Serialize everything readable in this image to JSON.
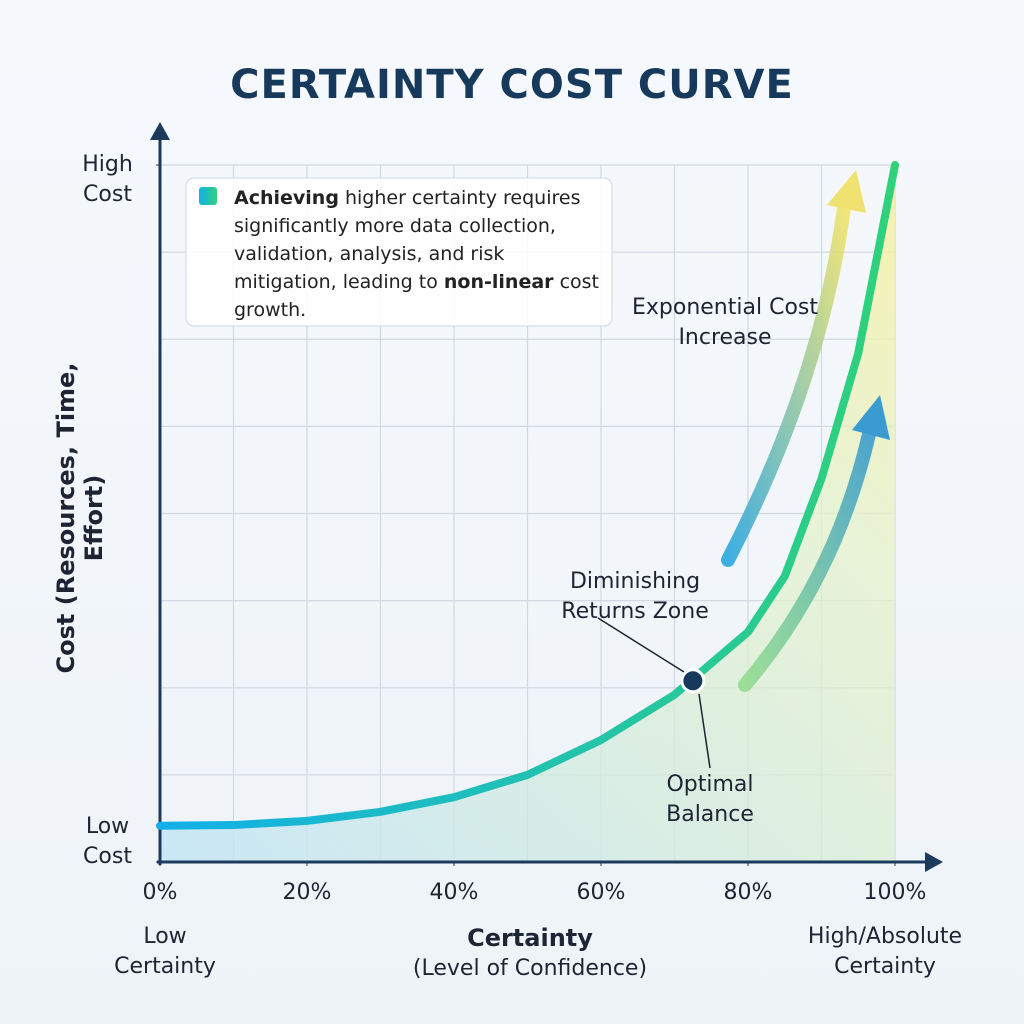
{
  "chart_data": {
    "type": "line",
    "title": "CERTAINTY COST CURVE",
    "x_title": "Certainty",
    "x_subtitle": "(Level of Confidence)",
    "x_start_label": "Low Certainty",
    "x_end_label": "High/Absolute Certainty",
    "y_title": "Cost (Resources, Time, Effort)",
    "xlim": [
      0,
      100
    ],
    "ylim": [
      0,
      100
    ],
    "xticks": [
      {
        "value": 0,
        "label": "0%"
      },
      {
        "value": 20,
        "label": "20%"
      },
      {
        "value": 40,
        "label": "40%"
      },
      {
        "value": 60,
        "label": "60%"
      },
      {
        "value": 80,
        "label": "80%"
      },
      {
        "value": 100,
        "label": "100%"
      }
    ],
    "yticks": [
      {
        "value": 0,
        "label": "Low Cost"
      },
      {
        "value": 100,
        "label": "High Cost"
      }
    ],
    "grid_x": [
      10,
      20,
      30,
      40,
      50,
      60,
      70,
      80,
      90,
      100
    ],
    "grid_y": [
      12.5,
      25,
      37.5,
      50,
      62.5,
      75,
      87.5,
      100
    ],
    "series": [
      {
        "name": "Cost",
        "colors": [
          "#12b0ea",
          "#2fd27a"
        ],
        "x": [
          0,
          10,
          20,
          30,
          40,
          50,
          60,
          70,
          80,
          85,
          90,
          95,
          100
        ],
        "values": [
          5.2,
          5.3,
          5.9,
          7.2,
          9.3,
          12.5,
          17.5,
          24,
          33,
          41,
          55,
          73,
          100
        ]
      }
    ],
    "highlight": {
      "x": 72.5,
      "y": 26
    },
    "annotations": {
      "diminishing": "Diminishing Returns Zone",
      "optimal": "Optimal Balance",
      "exponential": "Exponential Cost Increase"
    },
    "callout": [
      "Achieving",
      " higher certainty requires significantly more data collection, validation, analysis, and risk mitigation, leading to ",
      "non-linear",
      " cost growth."
    ]
  }
}
